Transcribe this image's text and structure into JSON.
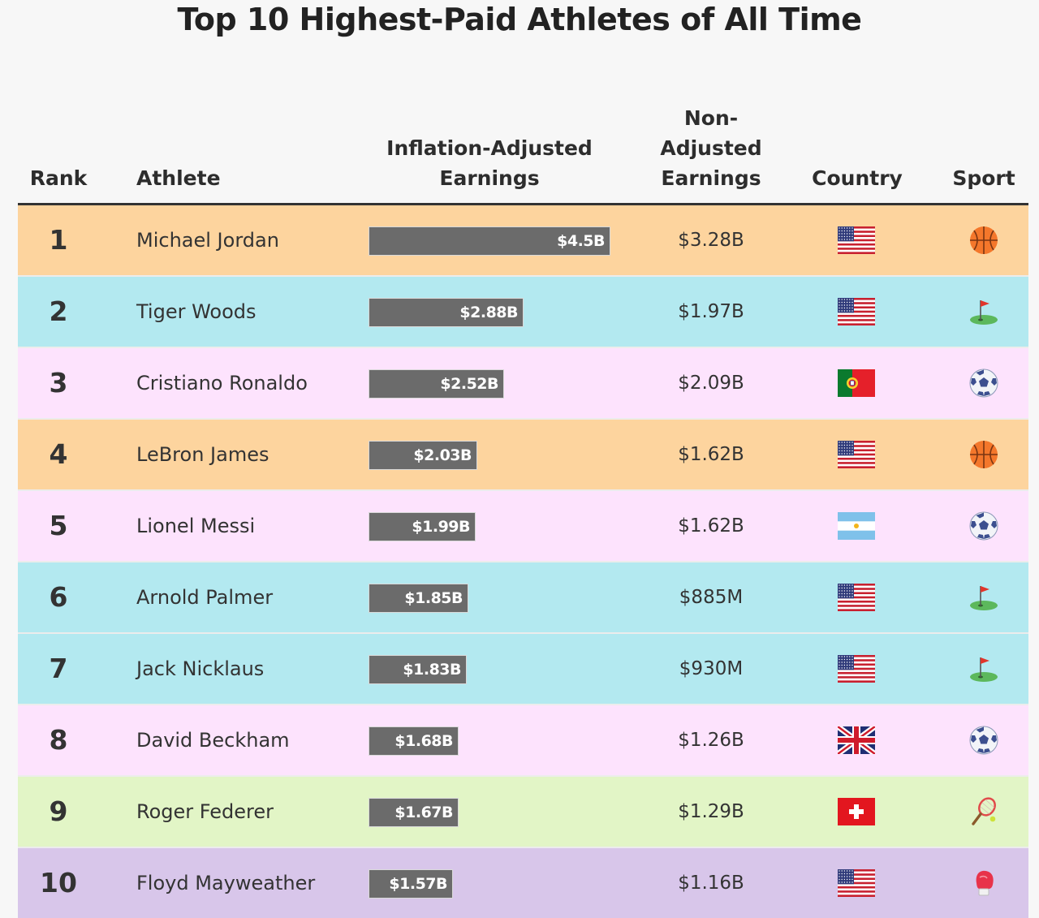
{
  "title": "Top 10 Highest-Paid Athletes of All Time",
  "headers": {
    "rank": "Rank",
    "athlete": "Athlete",
    "inflation_line1": "Inflation-Adjusted",
    "inflation_line2": "Earnings",
    "non_line1": "Non-",
    "non_line2": "Adjusted",
    "non_line3": "Earnings",
    "country": "Country",
    "sport": "Sport"
  },
  "colors": {
    "basketball_row": "#fdd49e",
    "golf_row": "#b3e9f0",
    "soccer_row": "#fde3fd",
    "tennis_row": "#e2f5c6",
    "boxing_row": "#d8c6ea",
    "bar": "#6b6b6b"
  },
  "chart_data": {
    "type": "table",
    "title": "Top 10 Highest-Paid Athletes of All Time",
    "columns": [
      "Rank",
      "Athlete",
      "Inflation-Adjusted Earnings",
      "Non-Adjusted Earnings",
      "Country",
      "Sport"
    ],
    "bar_max_billions": 4.5,
    "rows": [
      {
        "rank": "1",
        "athlete": "Michael Jordan",
        "inflation_value": 4.5,
        "inflation_label": "$4.5B",
        "non_adjusted": "$3.28B",
        "country": "us-flag-icon",
        "sport": "basketball-icon",
        "row_color": "#fdd49e"
      },
      {
        "rank": "2",
        "athlete": "Tiger Woods",
        "inflation_value": 2.88,
        "inflation_label": "$2.88B",
        "non_adjusted": "$1.97B",
        "country": "us-flag-icon",
        "sport": "golf-icon",
        "row_color": "#b3e9f0"
      },
      {
        "rank": "3",
        "athlete": "Cristiano Ronaldo",
        "inflation_value": 2.52,
        "inflation_label": "$2.52B",
        "non_adjusted": "$2.09B",
        "country": "portugal-flag-icon",
        "sport": "soccer-ball-icon",
        "row_color": "#fde3fd"
      },
      {
        "rank": "4",
        "athlete": "LeBron James",
        "inflation_value": 2.03,
        "inflation_label": "$2.03B",
        "non_adjusted": "$1.62B",
        "country": "us-flag-icon",
        "sport": "basketball-icon",
        "row_color": "#fdd49e"
      },
      {
        "rank": "5",
        "athlete": "Lionel Messi",
        "inflation_value": 1.99,
        "inflation_label": "$1.99B",
        "non_adjusted": "$1.62B",
        "country": "argentina-flag-icon",
        "sport": "soccer-ball-icon",
        "row_color": "#fde3fd"
      },
      {
        "rank": "6",
        "athlete": "Arnold Palmer",
        "inflation_value": 1.85,
        "inflation_label": "$1.85B",
        "non_adjusted": "$885M",
        "country": "us-flag-icon",
        "sport": "golf-icon",
        "row_color": "#b3e9f0"
      },
      {
        "rank": "7",
        "athlete": "Jack Nicklaus",
        "inflation_value": 1.83,
        "inflation_label": "$1.83B",
        "non_adjusted": "$930M",
        "country": "us-flag-icon",
        "sport": "golf-icon",
        "row_color": "#b3e9f0"
      },
      {
        "rank": "8",
        "athlete": "David Beckham",
        "inflation_value": 1.68,
        "inflation_label": "$1.68B",
        "non_adjusted": "$1.26B",
        "country": "uk-flag-icon",
        "sport": "soccer-ball-icon",
        "row_color": "#fde3fd"
      },
      {
        "rank": "9",
        "athlete": "Roger Federer",
        "inflation_value": 1.67,
        "inflation_label": "$1.67B",
        "non_adjusted": "$1.29B",
        "country": "switzerland-flag-icon",
        "sport": "tennis-racket-icon",
        "row_color": "#e2f5c6"
      },
      {
        "rank": "10",
        "athlete": "Floyd Mayweather",
        "inflation_value": 1.57,
        "inflation_label": "$1.57B",
        "non_adjusted": "$1.16B",
        "country": "us-flag-icon",
        "sport": "boxing-glove-icon",
        "row_color": "#d8c6ea"
      }
    ]
  }
}
